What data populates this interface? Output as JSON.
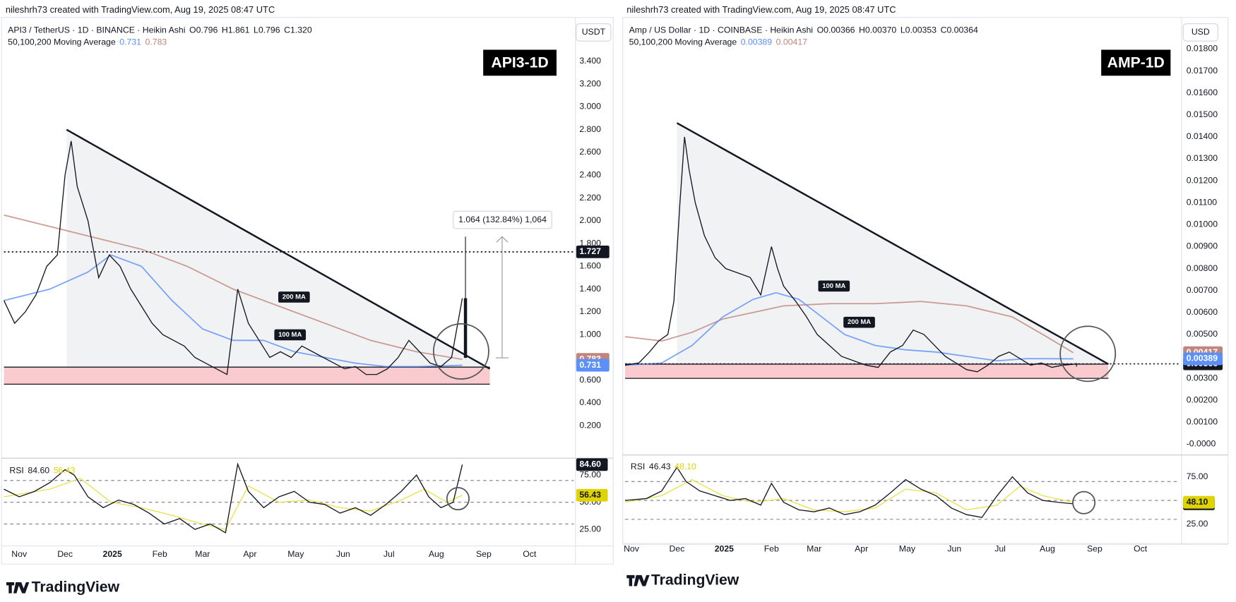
{
  "chart_data": [
    {
      "type": "line",
      "caption": "nileshrh73 created with TradingView.com, Aug 19, 2025 08:47 UTC",
      "symbol": "API3 / TetherUS · 1D · BINANCE · Heikin Ashi",
      "ohlc": [
        {
          "name": "O",
          "value": 0.796
        },
        {
          "name": "H",
          "value": 1.861
        },
        {
          "name": "L",
          "value": 0.796
        },
        {
          "name": "C",
          "value": 1.32,
          "label": "1.320"
        }
      ],
      "ma_title": "50,100,200 Moving Average",
      "badge": "API3-1D",
      "currency": "USDT",
      "xlim": [
        -10,
        363
      ],
      "xticks": [
        {
          "value": 0,
          "label": "Nov"
        },
        {
          "value": 30,
          "label": "Dec"
        },
        {
          "value": 61,
          "label": "2025"
        },
        {
          "value": 92,
          "label": "Feb"
        },
        {
          "value": 120,
          "label": "Mar"
        },
        {
          "value": 151,
          "label": "Apr"
        },
        {
          "value": 181,
          "label": "May"
        },
        {
          "value": 212,
          "label": "Jun"
        },
        {
          "value": 242,
          "label": "Jul"
        },
        {
          "value": 273,
          "label": "Aug"
        },
        {
          "value": 304,
          "label": "Sep"
        },
        {
          "value": 334,
          "label": "Oct"
        }
      ],
      "ylim": [
        -0.06,
        3.73
      ],
      "yticks": [
        {
          "value": 0.2,
          "label": "0.200"
        },
        {
          "value": 0.4,
          "label": "0.400"
        },
        {
          "value": 0.6,
          "label": "0.600"
        },
        {
          "value": 0.8,
          "label": "0.800"
        },
        {
          "value": 1.0,
          "label": "1.000"
        },
        {
          "value": 1.2,
          "label": "1.200"
        },
        {
          "value": 1.4,
          "label": "1.400"
        },
        {
          "value": 1.6,
          "label": "1.600"
        },
        {
          "value": 1.8,
          "label": "1.800"
        },
        {
          "value": 2.0,
          "label": "2.000"
        },
        {
          "value": 2.2,
          "label": "2.200"
        },
        {
          "value": 2.4,
          "label": "2.400"
        },
        {
          "value": 2.6,
          "label": "2.600"
        },
        {
          "value": 2.8,
          "label": "2.800"
        },
        {
          "value": 3.0,
          "label": "3.000"
        },
        {
          "value": 3.2,
          "label": "3.200"
        },
        {
          "value": 3.4,
          "label": "3.400"
        }
      ],
      "series": [
        {
          "color": "#131722",
          "x": [
            -10,
            -3,
            4,
            11,
            18,
            25,
            30,
            34,
            38,
            45,
            52,
            59,
            66,
            73,
            80,
            87,
            94,
            101,
            108,
            115,
            122,
            129,
            136,
            143,
            150,
            157,
            164,
            171,
            178,
            185,
            192,
            199,
            206,
            213,
            220,
            227,
            234,
            241,
            248,
            255,
            262,
            269,
            276,
            283,
            290
          ],
          "values": [
            1.3,
            1.1,
            1.2,
            1.35,
            1.6,
            1.7,
            2.4,
            2.7,
            2.3,
            2.0,
            1.5,
            1.7,
            1.6,
            1.4,
            1.25,
            1.1,
            1.0,
            0.95,
            0.9,
            0.8,
            0.75,
            0.7,
            0.65,
            1.4,
            1.1,
            0.95,
            0.8,
            0.85,
            0.8,
            0.9,
            0.85,
            0.8,
            0.75,
            0.7,
            0.72,
            0.65,
            0.65,
            0.7,
            0.8,
            0.95,
            0.85,
            0.75,
            0.72,
            0.8,
            1.32
          ]
        },
        {
          "name": "100 MA",
          "color": "#5b8ff9",
          "x": [
            -10,
            20,
            45,
            60,
            80,
            100,
            120,
            140,
            160,
            180,
            200,
            220,
            240,
            260,
            290
          ],
          "values": [
            1.3,
            1.4,
            1.55,
            1.7,
            1.6,
            1.3,
            1.05,
            0.95,
            0.95,
            0.85,
            0.8,
            0.75,
            0.72,
            0.72,
            0.731
          ]
        },
        {
          "name": "200 MA",
          "color": "#c0857c",
          "x": [
            -10,
            20,
            50,
            80,
            110,
            140,
            170,
            200,
            230,
            260,
            290
          ],
          "values": [
            2.05,
            1.95,
            1.85,
            1.75,
            1.6,
            1.4,
            1.25,
            1.1,
            0.95,
            0.85,
            0.783
          ]
        }
      ],
      "trendline": {
        "x": [
          31,
          308
        ],
        "y": [
          2.8,
          0.7
        ]
      },
      "zone": {
        "x": [
          -10,
          308
        ],
        "y": [
          0.565,
          0.715
        ]
      },
      "price_line": 1.727,
      "measure_label": "1.064 (132.84%) 1,064",
      "rsi": {
        "title": "RSI",
        "ylim": [
          12,
          88
        ],
        "yticks": [
          {
            "value": 25,
            "label": "25.00"
          },
          {
            "value": 50,
            "label": "50.00"
          },
          {
            "value": 75,
            "label": "75.00"
          }
        ],
        "bands": [
          70,
          50,
          30
        ],
        "current": [
          {
            "value": 84.6,
            "label": "84.60",
            "color": "#131722"
          },
          {
            "value": 56.43,
            "label": "56.43",
            "color": "#e0d400"
          }
        ],
        "series": [
          {
            "color": "#131722",
            "x": [
              -10,
              0,
              10,
              20,
              30,
              36,
              45,
              55,
              65,
              75,
              85,
              95,
              105,
              115,
              125,
              135,
              143,
              150,
              160,
              170,
              180,
              190,
              200,
              210,
              220,
              230,
              240,
              250,
              260,
              268,
              276,
              284,
              290
            ],
            "values": [
              62,
              55,
              60,
              68,
              80,
              75,
              55,
              45,
              52,
              48,
              40,
              30,
              35,
              25,
              30,
              22,
              85,
              60,
              45,
              55,
              60,
              50,
              48,
              40,
              45,
              38,
              48,
              60,
              75,
              55,
              45,
              50,
              84.6
            ]
          },
          {
            "color": "#e8e24a",
            "x": [
              -10,
              20,
              40,
              60,
              80,
              100,
              120,
              135,
              150,
              170,
              190,
              210,
              230,
              250,
              265,
              280,
              290
            ],
            "values": [
              55,
              62,
              72,
              50,
              45,
              38,
              30,
              25,
              65,
              50,
              52,
              45,
              42,
              52,
              62,
              50,
              56.43
            ]
          }
        ]
      }
    },
    {
      "type": "line",
      "caption": "nileshrh73 created with TradingView.com, Aug 19, 2025 08:47 UTC",
      "symbol": "Amp / US Dollar · 1D · COINBASE · Heikin Ashi",
      "ohlc": [
        {
          "name": "O",
          "value": 0.00366
        },
        {
          "name": "H",
          "value": 0.0037,
          "label": "0.00370"
        },
        {
          "name": "L",
          "value": 0.00353
        },
        {
          "name": "C",
          "value": 0.00364
        }
      ],
      "ma_title": "50,100,200 Moving Average",
      "badge": "AMP-1D",
      "currency": "USD",
      "xlim": [
        -4,
        360
      ],
      "xticks": [
        {
          "value": 0,
          "label": "Nov"
        },
        {
          "value": 30,
          "label": "Dec"
        },
        {
          "value": 61,
          "label": "2025"
        },
        {
          "value": 92,
          "label": "Feb"
        },
        {
          "value": 120,
          "label": "Mar"
        },
        {
          "value": 151,
          "label": "Apr"
        },
        {
          "value": 181,
          "label": "May"
        },
        {
          "value": 212,
          "label": "Jun"
        },
        {
          "value": 242,
          "label": "Jul"
        },
        {
          "value": 273,
          "label": "Aug"
        },
        {
          "value": 304,
          "label": "Sep"
        },
        {
          "value": 334,
          "label": "Oct"
        }
      ],
      "ylim": [
        -0.0004,
        0.01915
      ],
      "yticks": [
        {
          "value": 0,
          "label": "-0.0000"
        },
        {
          "value": 0.001,
          "label": "0.00100"
        },
        {
          "value": 0.002,
          "label": "0.00200"
        },
        {
          "value": 0.003,
          "label": "0.00300"
        },
        {
          "value": 0.004,
          "label": "0.00400"
        },
        {
          "value": 0.005,
          "label": "0.00500"
        },
        {
          "value": 0.006,
          "label": "0.00600"
        },
        {
          "value": 0.007,
          "label": "0.00700"
        },
        {
          "value": 0.008,
          "label": "0.00800"
        },
        {
          "value": 0.009,
          "label": "0.00900"
        },
        {
          "value": 0.01,
          "label": "0.01000"
        },
        {
          "value": 0.011,
          "label": "0.01100"
        },
        {
          "value": 0.012,
          "label": "0.01200"
        },
        {
          "value": 0.013,
          "label": "0.01300"
        },
        {
          "value": 0.014,
          "label": "0.01400"
        },
        {
          "value": 0.015,
          "label": "0.01500"
        },
        {
          "value": 0.016,
          "label": "0.01600"
        },
        {
          "value": 0.017,
          "label": "0.01700"
        },
        {
          "value": 0.018,
          "label": "0.01800"
        }
      ],
      "series": [
        {
          "color": "#131722",
          "x": [
            -4,
            5,
            12,
            18,
            24,
            28,
            32,
            35,
            38,
            42,
            48,
            55,
            62,
            70,
            78,
            85,
            92,
            96,
            100,
            108,
            115,
            122,
            130,
            138,
            146,
            154,
            162,
            170,
            178,
            185,
            192,
            199,
            206,
            213,
            220,
            227,
            234,
            241,
            248,
            255,
            262,
            269,
            276,
            283,
            290
          ],
          "values": [
            0.0036,
            0.0037,
            0.0042,
            0.0047,
            0.005,
            0.0065,
            0.011,
            0.014,
            0.0125,
            0.011,
            0.0095,
            0.0085,
            0.008,
            0.0078,
            0.0076,
            0.0068,
            0.009,
            0.008,
            0.0072,
            0.0065,
            0.0058,
            0.005,
            0.0045,
            0.004,
            0.0038,
            0.0036,
            0.0035,
            0.0042,
            0.0045,
            0.0052,
            0.005,
            0.0045,
            0.004,
            0.0037,
            0.0034,
            0.0033,
            0.0036,
            0.004,
            0.0042,
            0.0039,
            0.0036,
            0.0037,
            0.0035,
            0.0036,
            0.00364
          ]
        },
        {
          "name": "100 MA",
          "color": "#5b8ff9",
          "x": [
            -4,
            20,
            40,
            60,
            80,
            95,
            110,
            125,
            140,
            160,
            180,
            200,
            220,
            240,
            260,
            290
          ],
          "values": [
            0.0036,
            0.0037,
            0.0045,
            0.0058,
            0.0066,
            0.0069,
            0.0066,
            0.0058,
            0.005,
            0.0045,
            0.0043,
            0.0042,
            0.004,
            0.0038,
            0.0039,
            0.00389
          ]
        },
        {
          "name": "200 MA",
          "color": "#c0857c",
          "x": [
            -4,
            20,
            40,
            60,
            80,
            100,
            130,
            160,
            190,
            220,
            250,
            270,
            290
          ],
          "values": [
            0.0049,
            0.0047,
            0.0051,
            0.0057,
            0.006,
            0.0063,
            0.0064,
            0.0064,
            0.0065,
            0.0063,
            0.0058,
            0.005,
            0.00417
          ]
        }
      ],
      "trendline": {
        "x": [
          30,
          313
        ],
        "y": [
          0.01463,
          0.00365
        ]
      },
      "zone": {
        "x": [
          -4,
          313
        ],
        "y": [
          0.003,
          0.00365
        ]
      },
      "price_line": 0.00366,
      "rsi": {
        "title": "RSI",
        "ylim": [
          6,
          96
        ],
        "yticks": [
          {
            "value": 25,
            "label": "25.00"
          },
          {
            "value": 50,
            "label": "50.00"
          },
          {
            "value": 75,
            "label": "75.00"
          }
        ],
        "bands": [
          70,
          50,
          30
        ],
        "current": [
          {
            "value": 46.43,
            "label": "46.43",
            "color": "#131722"
          },
          {
            "value": 48.1,
            "label": "48.10",
            "color": "#e0d400"
          }
        ],
        "series": [
          {
            "color": "#131722",
            "x": [
              -4,
              10,
              20,
              30,
              36,
              45,
              55,
              65,
              75,
              85,
              92,
              100,
              110,
              120,
              130,
              140,
              150,
              160,
              170,
              180,
              190,
              200,
              210,
              220,
              230,
              240,
              250,
              260,
              270,
              280,
              290
            ],
            "values": [
              50,
              52,
              60,
              85,
              70,
              60,
              55,
              50,
              52,
              45,
              68,
              48,
              40,
              38,
              42,
              35,
              38,
              45,
              58,
              72,
              62,
              55,
              42,
              35,
              32,
              55,
              75,
              58,
              50,
              48,
              46.43
            ]
          },
          {
            "color": "#e8e24a",
            "x": [
              -4,
              20,
              40,
              60,
              80,
              100,
              120,
              140,
              160,
              180,
              200,
              220,
              240,
              255,
              270,
              290
            ],
            "values": [
              48,
              55,
              72,
              55,
              48,
              52,
              40,
              38,
              42,
              62,
              58,
              40,
              45,
              65,
              55,
              48.1
            ]
          }
        ]
      }
    }
  ],
  "logos": [
    "TradingView",
    "TradingView"
  ]
}
